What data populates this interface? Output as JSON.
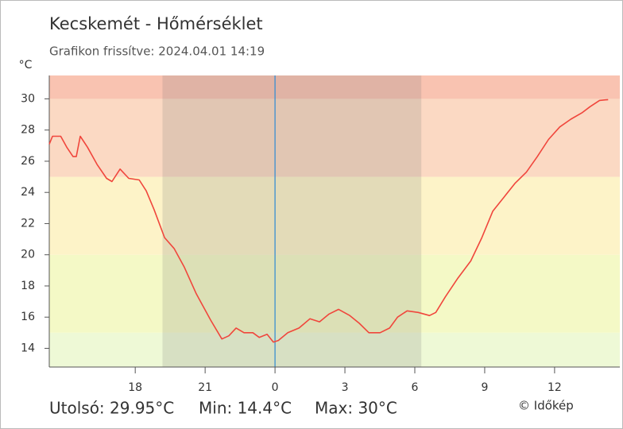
{
  "chart_data": {
    "type": "line",
    "title": "Kecskemét - Hőmérséklet",
    "subtitle": "Grafikon frissítve: 2024.04.01 14:19",
    "y_unit": "°C",
    "x": [
      14.31,
      14.45,
      14.8,
      15.06,
      15.33,
      15.47,
      15.64,
      15.95,
      16.36,
      16.77,
      17.0,
      17.35,
      17.72,
      18.17,
      18.47,
      18.81,
      19.26,
      19.67,
      20.11,
      20.62,
      21.24,
      21.72,
      22.02,
      22.33,
      22.67,
      23.05,
      23.32,
      23.66,
      23.93,
      24.14,
      24.55,
      25.03,
      25.5,
      25.91,
      26.32,
      26.73,
      27.21,
      27.62,
      28.03,
      28.51,
      28.92,
      29.26,
      29.67,
      30.15,
      30.63,
      30.9,
      31.31,
      31.85,
      32.4,
      32.88,
      33.35,
      33.83,
      34.31,
      34.79,
      35.26,
      35.74,
      36.22,
      36.7,
      37.17,
      37.52,
      37.93,
      38.3
    ],
    "series": [
      {
        "name": "Hőmérséklet",
        "color": "#f0463c",
        "values": [
          27.1,
          27.6,
          27.6,
          26.9,
          26.3,
          26.3,
          27.6,
          26.9,
          25.8,
          24.9,
          24.7,
          25.5,
          24.9,
          24.8,
          24.1,
          22.9,
          21.1,
          20.4,
          19.2,
          17.5,
          15.8,
          14.6,
          14.8,
          15.3,
          15.0,
          15.0,
          14.7,
          14.9,
          14.4,
          14.5,
          15.0,
          15.3,
          15.9,
          15.7,
          16.2,
          16.5,
          16.1,
          15.6,
          15.0,
          15.0,
          15.3,
          16.0,
          16.4,
          16.3,
          16.1,
          16.3,
          17.3,
          18.5,
          19.6,
          21.1,
          22.8,
          23.7,
          24.6,
          25.3,
          26.3,
          27.4,
          28.2,
          28.7,
          29.1,
          29.5,
          29.9,
          29.95
        ]
      }
    ],
    "xlim": [
      14.31,
      38.8
    ],
    "xticks": [
      {
        "value": 18,
        "label": "18"
      },
      {
        "value": 21,
        "label": "21"
      },
      {
        "value": 24,
        "label": "0"
      },
      {
        "value": 27,
        "label": "3"
      },
      {
        "value": 30,
        "label": "6"
      },
      {
        "value": 33,
        "label": "9"
      },
      {
        "value": 36,
        "label": "12"
      }
    ],
    "ylim": [
      12.8,
      31.5
    ],
    "yticks": [
      14,
      16,
      18,
      20,
      22,
      24,
      26,
      28,
      30
    ],
    "bands": [
      {
        "from": 12.8,
        "to": 15,
        "color": "#eef9d6"
      },
      {
        "from": 15,
        "to": 20,
        "color": "#f4f9c6"
      },
      {
        "from": 20,
        "to": 25,
        "color": "#fdf3c8"
      },
      {
        "from": 25,
        "to": 30,
        "color": "#fbd9c3"
      },
      {
        "from": 30,
        "to": 31.5,
        "color": "#f9c3b1"
      }
    ],
    "night": [
      19.17,
      30.28
    ],
    "now_x": 24,
    "stats": [
      "Utolsó: 29.95°C",
      "Min: 14.4°C",
      "Max: 30°C"
    ],
    "credit": "© Időkép"
  }
}
